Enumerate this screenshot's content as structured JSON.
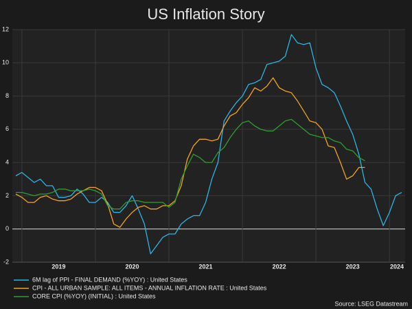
{
  "chart_data": {
    "type": "line",
    "title": "US Inflation Story",
    "source": "Source: LSEG Datastream",
    "categories": [
      null,
      "2019",
      null,
      null,
      null,
      null,
      null,
      null,
      null,
      null,
      null,
      null,
      null,
      "2020",
      null,
      null,
      null,
      null,
      null,
      null,
      null,
      null,
      null,
      null,
      null,
      "2021",
      null,
      null,
      null,
      null,
      null,
      null,
      null,
      null,
      null,
      null,
      null,
      "2022",
      null,
      null,
      null,
      null,
      null,
      null,
      null,
      null,
      null,
      null,
      null,
      "2023",
      null,
      null,
      null,
      null,
      null,
      null,
      null,
      null,
      null,
      null,
      null,
      "2024",
      null,
      null
    ],
    "series": [
      {
        "name": "6M lag of PPI - FINAL DEMAND (%YOY) : United States",
        "color": "#29b6e8",
        "values": [
          3.2,
          3.4,
          3.1,
          2.8,
          3.0,
          2.6,
          2.6,
          1.9,
          1.9,
          2.0,
          2.4,
          2.1,
          1.6,
          1.6,
          1.9,
          1.6,
          1.0,
          1.0,
          1.4,
          2.0,
          1.2,
          0.3,
          -1.5,
          -1.0,
          -0.5,
          -0.3,
          -0.3,
          0.3,
          0.6,
          0.8,
          0.8,
          1.6,
          3.0,
          4.0,
          6.5,
          7.1,
          7.6,
          8.0,
          8.7,
          8.8,
          9.0,
          9.9,
          10.0,
          10.1,
          10.4,
          11.7,
          11.2,
          11.1,
          11.2,
          9.7,
          8.7,
          8.5,
          8.2,
          7.4,
          6.5,
          5.7,
          4.5,
          2.8,
          2.4,
          1.2,
          0.2,
          1.0,
          2.0,
          2.2
        ]
      },
      {
        "name": "CPI - ALL URBAN SAMPLE: ALL ITEMS - ANNUAL INFLATION RATE : United States",
        "color": "#f5a21f",
        "values": [
          2.1,
          1.9,
          1.6,
          1.6,
          1.9,
          2.0,
          1.8,
          1.7,
          1.7,
          1.8,
          2.1,
          2.3,
          2.5,
          2.5,
          2.3,
          1.5,
          0.3,
          0.1,
          0.6,
          1.0,
          1.3,
          1.4,
          1.2,
          1.2,
          1.4,
          1.4,
          1.7,
          2.6,
          4.2,
          5.0,
          5.4,
          5.4,
          5.3,
          5.4,
          6.2,
          6.8,
          7.0,
          7.5,
          7.9,
          8.5,
          8.3,
          8.6,
          9.1,
          8.5,
          8.3,
          8.2,
          7.7,
          7.1,
          6.5,
          6.4,
          6.0,
          5.0,
          4.9,
          4.0,
          3.0,
          3.2,
          3.7,
          3.7,
          null,
          null,
          null,
          null,
          null,
          null
        ]
      },
      {
        "name": "CORE CPI (%YOY) (INITIAL) : United States",
        "color": "#2f9e2f",
        "values": [
          2.2,
          2.2,
          2.1,
          2.0,
          2.1,
          2.1,
          2.2,
          2.4,
          2.4,
          2.3,
          2.3,
          2.3,
          2.4,
          2.3,
          2.1,
          1.4,
          1.2,
          1.2,
          1.6,
          1.7,
          1.7,
          1.6,
          1.6,
          1.6,
          1.6,
          1.3,
          1.6,
          3.0,
          3.8,
          4.5,
          4.3,
          4.0,
          4.0,
          4.6,
          4.9,
          5.5,
          6.0,
          6.4,
          6.5,
          6.2,
          6.0,
          5.9,
          5.9,
          6.2,
          6.5,
          6.6,
          6.3,
          6.0,
          5.7,
          5.6,
          5.5,
          5.5,
          5.3,
          5.2,
          4.8,
          4.7,
          4.3,
          4.1,
          null,
          null,
          null,
          null,
          null,
          null
        ]
      }
    ],
    "ylim": [
      -2,
      12
    ],
    "yticks": [
      -2,
      0,
      2,
      4,
      6,
      8,
      10,
      12
    ],
    "grid": true
  }
}
